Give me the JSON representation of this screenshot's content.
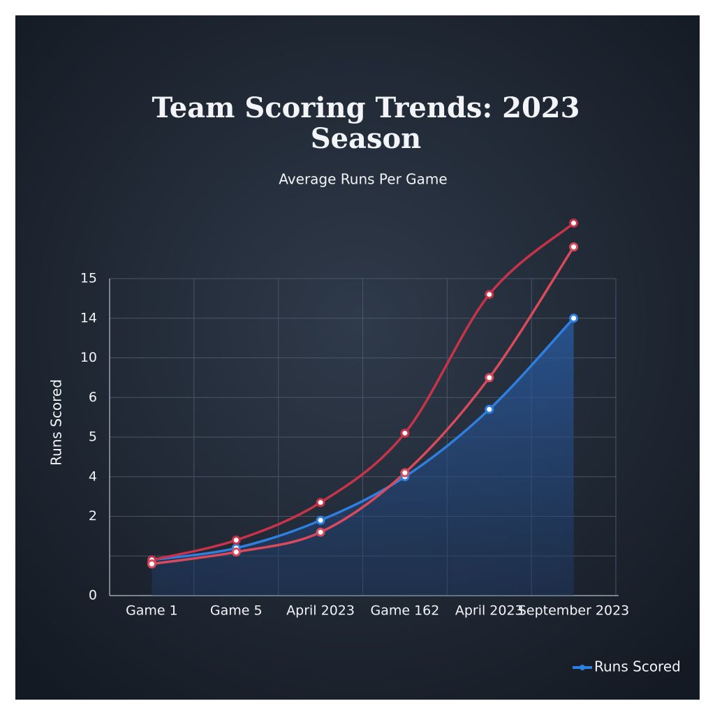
{
  "chart_data": {
    "type": "line",
    "title": "Team Scoring Trends: 2023 Season",
    "subtitle": "Average Runs Per Game",
    "y_label": "Runs Scored",
    "categories": [
      "Game 1",
      "Game 5",
      "April 2023",
      "Game 162",
      "April 2023",
      "September 2023"
    ],
    "yticks": [
      0,
      null,
      2,
      4,
      5,
      6,
      10,
      14,
      15
    ],
    "grid": true,
    "legend": "bottom-right",
    "series": [
      {
        "name": "Runs Scored",
        "color": "#2f7fe0",
        "values": [
          0.9,
          1.2,
          1.9,
          4.0,
          5.7,
          14
        ]
      },
      {
        "color": "#c8334a",
        "values": [
          0.9,
          1.4,
          2.7,
          5.1,
          14.6,
          16.4
        ]
      },
      {
        "color": "#d94a5c",
        "values": [
          0.8,
          1.1,
          1.6,
          4.1,
          8,
          15.8
        ]
      }
    ]
  }
}
